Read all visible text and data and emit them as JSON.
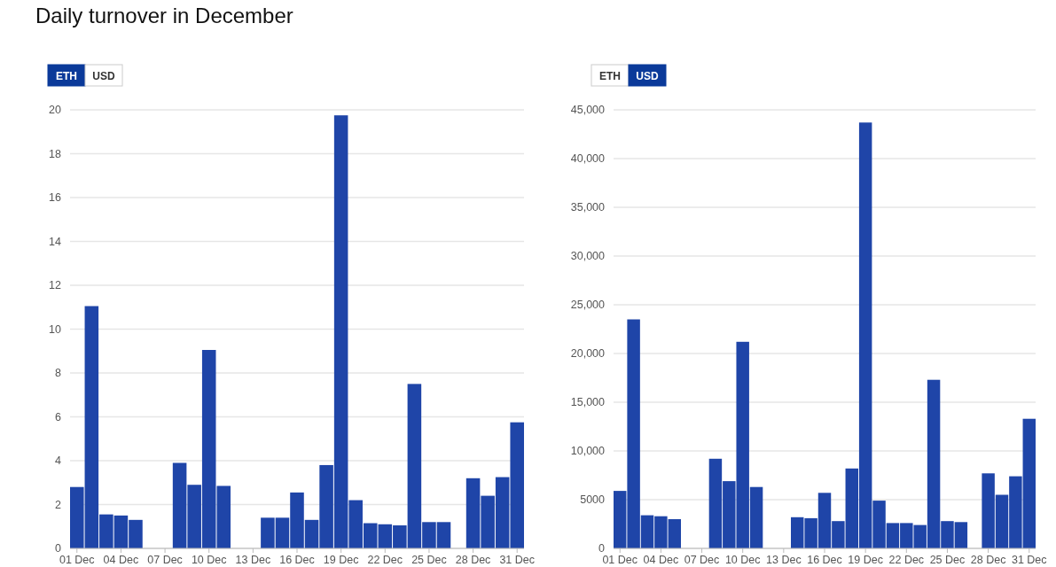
{
  "chart_data": [
    {
      "type": "bar",
      "title": "Daily turnover in December",
      "annotations": [
        "ETH",
        "USD"
      ],
      "categories": [
        "01 Dec",
        null,
        null,
        "04 Dec",
        null,
        null,
        "07 Dec",
        null,
        null,
        "10 Dec",
        null,
        null,
        "13 Dec",
        null,
        null,
        "16 Dec",
        null,
        null,
        "19 Dec",
        null,
        null,
        "22 Dec",
        null,
        null,
        "25 Dec",
        null,
        null,
        "28 Dec",
        null,
        null,
        "31 Dec"
      ],
      "values": [
        2.8,
        11.05,
        1.55,
        1.5,
        1.3,
        0,
        0,
        3.9,
        2.9,
        9.05,
        2.85,
        0,
        0,
        1.4,
        1.4,
        2.55,
        1.3,
        3.8,
        19.75,
        2.2,
        1.15,
        1.1,
        1.05,
        7.5,
        1.2,
        1.2,
        0,
        3.2,
        2.4,
        3.25,
        5.75
      ],
      "color": "#1f45a8",
      "ylim": [
        0,
        20
      ],
      "yticks": [
        0,
        2,
        4,
        6,
        8,
        10,
        12,
        14,
        16,
        18,
        20
      ],
      "grid": "y"
    },
    {
      "type": "bar",
      "annotations": [
        "ETH",
        "USD"
      ],
      "categories": [
        "01 Dec",
        null,
        null,
        "04 Dec",
        null,
        null,
        "07 Dec",
        null,
        null,
        "10 Dec",
        null,
        null,
        "13 Dec",
        null,
        null,
        "16 Dec",
        null,
        null,
        "19 Dec",
        null,
        null,
        "22 Dec",
        null,
        null,
        "25 Dec",
        null,
        null,
        "28 Dec",
        null,
        null,
        "31 Dec"
      ],
      "values": [
        5900,
        23500,
        3400,
        3300,
        3000,
        0,
        0,
        9200,
        6900,
        21200,
        6300,
        0,
        0,
        3200,
        3100,
        5700,
        2800,
        8200,
        43700,
        4900,
        2600,
        2600,
        2400,
        17300,
        2800,
        2700,
        0,
        7700,
        5500,
        7400,
        13300
      ],
      "color": "#1f45a8",
      "ylim": [
        0,
        45000
      ],
      "yticks": [
        0,
        5000,
        {
          "value": 10000,
          "label": "10,000"
        },
        {
          "value": 15000,
          "label": "15,000"
        },
        {
          "value": 20000,
          "label": "20,000"
        },
        {
          "value": 25000,
          "label": "25,000"
        },
        {
          "value": 30000,
          "label": "30,000"
        },
        {
          "value": 35000,
          "label": "35,000"
        },
        {
          "value": 40000,
          "label": "40,000"
        },
        {
          "value": 45000,
          "label": "45,000"
        }
      ],
      "grid": "y"
    }
  ]
}
